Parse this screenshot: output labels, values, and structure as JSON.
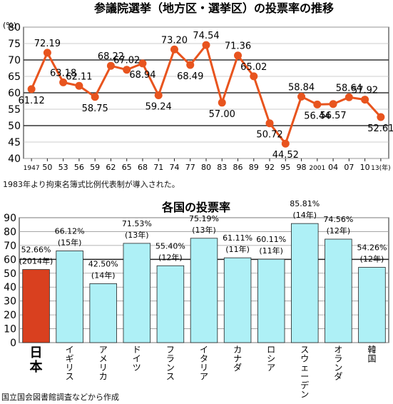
{
  "chart_data": [
    {
      "type": "line",
      "title": "参議院選挙（地方区・選挙区）の投票率の推移",
      "ylabel": "(%)",
      "ylim": [
        40,
        80
      ],
      "yticks": [
        40,
        45,
        50,
        55,
        60,
        65,
        70,
        75,
        80
      ],
      "x": [
        "1947",
        "50",
        "53",
        "56",
        "59",
        "62",
        "65",
        "68",
        "71",
        "74",
        "77",
        "80",
        "83",
        "86",
        "89",
        "92",
        "95",
        "98",
        "2001",
        "04",
        "07",
        "10",
        "13(年)"
      ],
      "values": [
        61.12,
        72.19,
        63.18,
        62.11,
        58.75,
        68.22,
        67.02,
        68.94,
        59.24,
        73.2,
        68.49,
        74.54,
        57.0,
        71.36,
        65.02,
        50.72,
        44.52,
        58.84,
        56.44,
        56.57,
        58.64,
        57.92,
        52.61
      ],
      "labels": [
        "61.12",
        "72.19",
        "63.18",
        "62.11",
        "58.75",
        "68.22",
        "67.02",
        "68.94",
        "59.24",
        "73.20",
        "68.49",
        "74.54",
        "57.00",
        "71.36",
        "65.02",
        "50.72",
        "44.52",
        "58.84",
        "56.44",
        "56.57",
        "58.64",
        "57.92",
        "52.61"
      ],
      "line_color": "#e8541e",
      "grid": true,
      "note": "1983年より拘束名簿式比例代表制が導入された。"
    },
    {
      "type": "bar",
      "title": "各国の投票率",
      "ylim": [
        0,
        90
      ],
      "yticks": [
        0,
        10,
        20,
        30,
        40,
        50,
        60,
        70,
        80,
        90
      ],
      "categories": [
        "日本",
        "イギリス",
        "アメリカ",
        "ドイツ",
        "フランス",
        "イタリア",
        "カナダ",
        "ロシア",
        "スウェーデン",
        "オランダ",
        "韓国"
      ],
      "values": [
        52.66,
        66.12,
        42.5,
        71.53,
        55.4,
        75.19,
        61.11,
        60.11,
        85.81,
        74.56,
        54.26
      ],
      "value_labels": [
        "52.66%",
        "66.12%",
        "42.50%",
        "71.53%",
        "55.40%",
        "75.19%",
        "61.11%",
        "60.11%",
        "85.81%",
        "74.56%",
        "54.26%"
      ],
      "year_labels": [
        "(2014年)",
        "(15年)",
        "(14年)",
        "(13年)",
        "(12年)",
        "(13年)",
        "(11年)",
        "(11年)",
        "(14年)",
        "(12年)",
        "(12年)"
      ],
      "highlight_color": "#d9401f",
      "bar_color": "#aef0f6"
    }
  ],
  "footer": {
    "source": "国立国会図書館調査などから作成"
  }
}
